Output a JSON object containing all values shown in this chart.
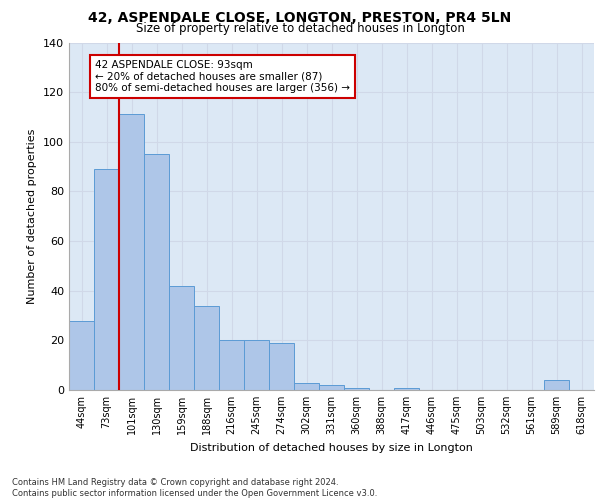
{
  "title": "42, ASPENDALE CLOSE, LONGTON, PRESTON, PR4 5LN",
  "subtitle": "Size of property relative to detached houses in Longton",
  "xlabel": "Distribution of detached houses by size in Longton",
  "ylabel": "Number of detached properties",
  "categories": [
    "44sqm",
    "73sqm",
    "101sqm",
    "130sqm",
    "159sqm",
    "188sqm",
    "216sqm",
    "245sqm",
    "274sqm",
    "302sqm",
    "331sqm",
    "360sqm",
    "388sqm",
    "417sqm",
    "446sqm",
    "475sqm",
    "503sqm",
    "532sqm",
    "561sqm",
    "589sqm",
    "618sqm"
  ],
  "values": [
    28,
    89,
    111,
    95,
    42,
    34,
    20,
    20,
    19,
    3,
    2,
    1,
    0,
    1,
    0,
    0,
    0,
    0,
    0,
    4,
    0
  ],
  "bar_color": "#aec6e8",
  "bar_edge_color": "#5b9bd5",
  "vline_color": "#cc0000",
  "annotation_text": "42 ASPENDALE CLOSE: 93sqm\n← 20% of detached houses are smaller (87)\n80% of semi-detached houses are larger (356) →",
  "annotation_box_color": "#ffffff",
  "annotation_box_edge_color": "#cc0000",
  "ylim": [
    0,
    140
  ],
  "yticks": [
    0,
    20,
    40,
    60,
    80,
    100,
    120,
    140
  ],
  "grid_color": "#d0d8e8",
  "background_color": "#dce8f5",
  "footer": "Contains HM Land Registry data © Crown copyright and database right 2024.\nContains public sector information licensed under the Open Government Licence v3.0."
}
